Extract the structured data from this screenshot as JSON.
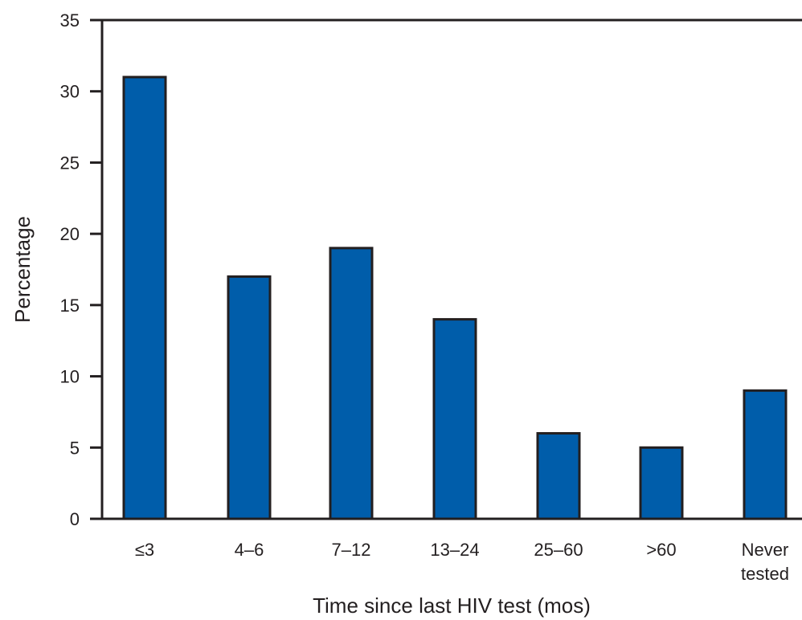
{
  "chart_data": {
    "type": "bar",
    "title": "",
    "xlabel": "Time since last HIV test (mos)",
    "ylabel": "Percentage",
    "categories": [
      [
        "≤3"
      ],
      [
        "4–6"
      ],
      [
        "7–12"
      ],
      [
        "13–24"
      ],
      [
        "25–60"
      ],
      [
        ">60"
      ],
      [
        "Never",
        "tested"
      ]
    ],
    "values": [
      31,
      17,
      19,
      14,
      6,
      5,
      9
    ],
    "ylim": [
      0,
      35
    ],
    "yticks": [
      0,
      5,
      10,
      15,
      20,
      25,
      30,
      35
    ],
    "grid": false,
    "bar_color": "#005daa",
    "axis_color": "#231f20"
  }
}
